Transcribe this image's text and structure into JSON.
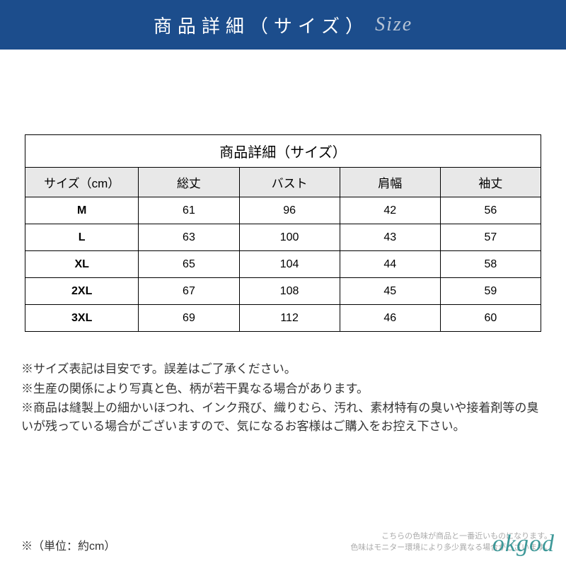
{
  "banner": {
    "title_jp": "商品詳細（サイズ）",
    "title_en": "Size",
    "background_color": "#1c4d8c",
    "text_color": "#ffffff",
    "en_color": "#b8c5d6",
    "jp_fontsize": 26,
    "en_fontsize": 28
  },
  "size_table": {
    "title": "商品詳細（サイズ）",
    "columns": [
      "サイズ（cm）",
      "総丈",
      "バスト",
      "肩幅",
      "袖丈"
    ],
    "header_bg": "#e8e8e8",
    "border_color": "#000000",
    "rows": [
      {
        "label": "M",
        "values": [
          "61",
          "96",
          "42",
          "56"
        ]
      },
      {
        "label": "L",
        "values": [
          "63",
          "100",
          "43",
          "57"
        ]
      },
      {
        "label": "XL",
        "values": [
          "65",
          "104",
          "44",
          "58"
        ]
      },
      {
        "label": "2XL",
        "values": [
          "67",
          "108",
          "45",
          "59"
        ]
      },
      {
        "label": "3XL",
        "values": [
          "69",
          "112",
          "46",
          "60"
        ]
      }
    ],
    "col_widths_pct": [
      22,
      19.5,
      19.5,
      19.5,
      19.5
    ],
    "title_fontsize": 20,
    "header_fontsize": 17,
    "cell_fontsize": 16
  },
  "notes": {
    "lines": [
      "※サイズ表記は目安です。誤差はご了承ください。",
      "※生産の関係により写真と色、柄が若干異なる場合があります。",
      "※商品は縫製上の細かいほつれ、インク飛び、織りむら、汚れ、素材特有の臭いや接着剤等の臭いが残っている場合がございますので、気になるお客様はご購入をお控え下さい。"
    ],
    "fontsize": 17,
    "color": "#333333"
  },
  "footer": {
    "unit_label": "※（単位：約cm）",
    "disclaimer_lines": [
      "こちらの色味が商品と一番近いものになります。",
      "色味はモニター環境により多少異なる場合がございます。"
    ],
    "disclaimer_color": "#aaaaaa",
    "disclaimer_fontsize": 11,
    "watermark_text": "okgod",
    "watermark_color": "#2b8f8f"
  }
}
